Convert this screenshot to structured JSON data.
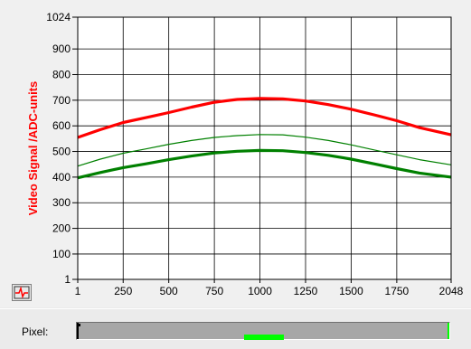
{
  "chart_data": {
    "type": "line",
    "xlabel": "",
    "ylabel": "Video Signal /ADC-units",
    "xlim": [
      1,
      2048
    ],
    "ylim": [
      1,
      1024
    ],
    "x_ticks": [
      1,
      250,
      500,
      750,
      1000,
      1250,
      1500,
      1750,
      2048
    ],
    "x_tick_labels": [
      "1",
      "250",
      "500",
      "750",
      "1000",
      "1250",
      "1500",
      "1750",
      "2048"
    ],
    "y_ticks": [
      1,
      100,
      200,
      300,
      400,
      500,
      600,
      700,
      800,
      900,
      1024
    ],
    "y_tick_labels": [
      "1",
      "100",
      "200",
      "300",
      "400",
      "500",
      "600",
      "700",
      "800",
      "900",
      "1024"
    ],
    "grid": true,
    "series": [
      {
        "color": "#ff0000",
        "width": "thick",
        "x": [
          1,
          125,
          250,
          375,
          500,
          625,
          750,
          875,
          1000,
          1125,
          1250,
          1375,
          1500,
          1625,
          1750,
          1875,
          2048
        ],
        "values": [
          555,
          585,
          613,
          632,
          652,
          673,
          692,
          703,
          707,
          705,
          697,
          683,
          665,
          643,
          620,
          593,
          565
        ]
      },
      {
        "color": "#008000",
        "width": "thin",
        "x": [
          1,
          125,
          250,
          375,
          500,
          625,
          750,
          875,
          1000,
          1125,
          1250,
          1375,
          1500,
          1625,
          1750,
          1875,
          2048
        ],
        "values": [
          443,
          470,
          493,
          510,
          528,
          543,
          555,
          562,
          566,
          565,
          556,
          543,
          526,
          506,
          487,
          468,
          448
        ]
      },
      {
        "color": "#008000",
        "width": "thick",
        "x": [
          1,
          125,
          250,
          375,
          500,
          625,
          750,
          875,
          1000,
          1125,
          1250,
          1375,
          1500,
          1625,
          1750,
          1875,
          2048
        ],
        "values": [
          397,
          418,
          437,
          452,
          468,
          482,
          494,
          501,
          504,
          503,
          496,
          485,
          470,
          452,
          433,
          416,
          400
        ]
      }
    ]
  },
  "pixel_bar": {
    "label": "Pixel:",
    "range": [
      1,
      2048
    ],
    "highlight": [
      920,
      1140
    ],
    "highlight_color": "#00ff00"
  },
  "icons": {
    "scale_icon": "autoscale-icon"
  }
}
